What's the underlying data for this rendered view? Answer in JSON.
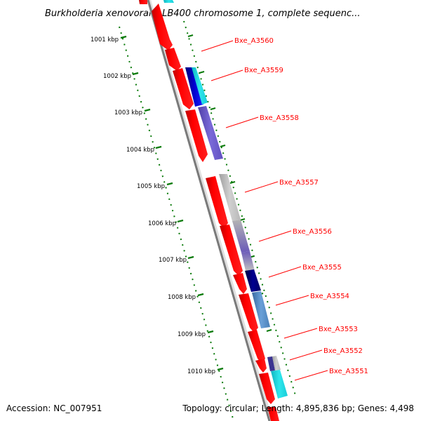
{
  "title": "Burkholderia xenovorans LB400 chromosome 1, complete sequenc...",
  "footer": {
    "accession": "Accession: NC_007951",
    "stats": "Topology: circular; Length: 4,895,836 bp; Genes: 4,498"
  },
  "kbp_labels": [
    "1001 kbp",
    "1002 kbp",
    "1003 kbp",
    "1004 kbp",
    "1005 kbp",
    "1006 kbp",
    "1007 kbp",
    "1008 kbp",
    "1009 kbp",
    "1010 kbp"
  ],
  "genes": [
    "Bxe_A3560",
    "Bxe_A3559",
    "Bxe_A3558",
    "Bxe_A3557",
    "Bxe_A3556",
    "Bxe_A3555",
    "Bxe_A3554",
    "Bxe_A3553",
    "Bxe_A3552",
    "Bxe_A3551"
  ],
  "colors": {
    "cds": "#ff0000",
    "backbone": "#808080",
    "ruler_dots": "#0a7a0a",
    "label": "#ff0000",
    "cyan": "#1ad0d0",
    "blue": "#0000b0",
    "slate": "#7060c8",
    "gray": "#b4b4b4",
    "navy": "#000070",
    "steel": "#4a80b8"
  }
}
